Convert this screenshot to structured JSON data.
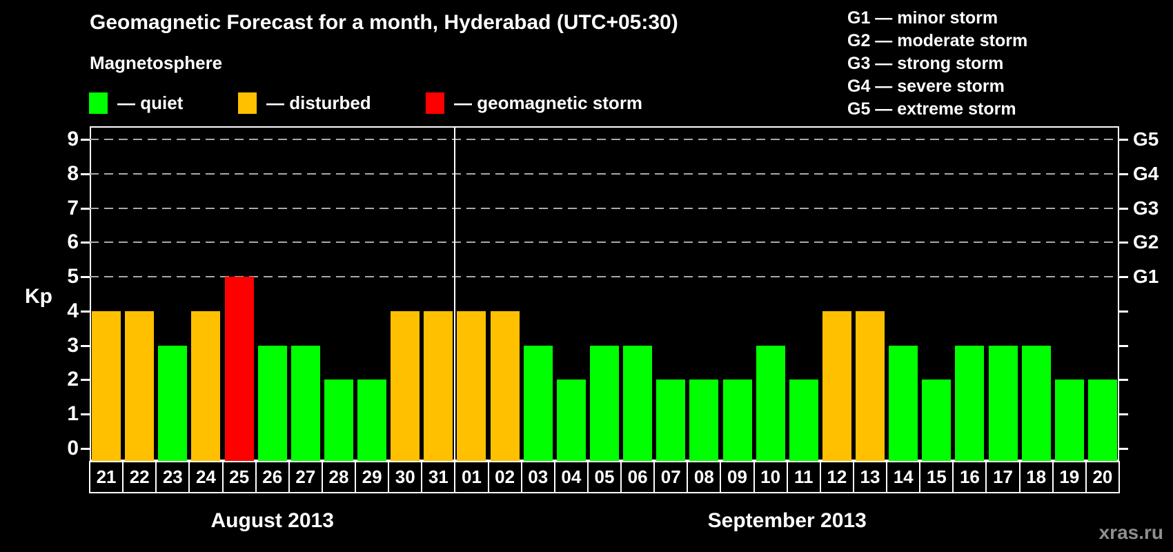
{
  "title": "Geomagnetic Forecast for a month, Hyderabad (UTC+05:30)",
  "subtitle": "Magnetosphere",
  "legend": {
    "items": [
      {
        "key": "quiet",
        "label": "— quiet",
        "color": "#00ff00"
      },
      {
        "key": "disturbed",
        "label": "— disturbed",
        "color": "#ffc000"
      },
      {
        "key": "storm",
        "label": "— geomagnetic storm",
        "color": "#ff0000"
      }
    ]
  },
  "storm_scale": {
    "lines": [
      "G1 — minor storm",
      "G2 — moderate storm",
      "G3 — strong storm",
      "G4 — severe storm",
      "G5 — extreme storm"
    ]
  },
  "watermark": "xras.ru",
  "chart_data": {
    "type": "bar",
    "title": "Geomagnetic Forecast for a month, Hyderabad (UTC+05:30)",
    "xlabel": "",
    "ylabel": "Kp",
    "ylim": [
      0,
      9
    ],
    "yticks": [
      0,
      1,
      2,
      3,
      4,
      5,
      6,
      7,
      8,
      9
    ],
    "grid": "dashed horizontal lines at Kp 5-9 only",
    "legend_position": "top-left",
    "right_axis": [
      {
        "kp": 5,
        "label": "G1"
      },
      {
        "kp": 6,
        "label": "G2"
      },
      {
        "kp": 7,
        "label": "G3"
      },
      {
        "kp": 8,
        "label": "G4"
      },
      {
        "kp": 9,
        "label": "G5"
      }
    ],
    "months": [
      {
        "label": "August 2013",
        "days": 11
      },
      {
        "label": "September 2013",
        "days": 20
      }
    ],
    "categories": [
      "21",
      "22",
      "23",
      "24",
      "25",
      "26",
      "27",
      "28",
      "29",
      "30",
      "31",
      "01",
      "02",
      "03",
      "04",
      "05",
      "06",
      "07",
      "08",
      "09",
      "10",
      "11",
      "12",
      "13",
      "14",
      "15",
      "16",
      "17",
      "18",
      "19",
      "20"
    ],
    "values": [
      4,
      4,
      3,
      4,
      5,
      3,
      3,
      2,
      2,
      4,
      4,
      4,
      4,
      3,
      2,
      3,
      3,
      2,
      2,
      2,
      3,
      2,
      4,
      4,
      3,
      2,
      3,
      3,
      3,
      2,
      2
    ],
    "statuses": [
      "disturbed",
      "disturbed",
      "quiet",
      "disturbed",
      "storm",
      "quiet",
      "quiet",
      "quiet",
      "quiet",
      "disturbed",
      "disturbed",
      "disturbed",
      "disturbed",
      "quiet",
      "quiet",
      "quiet",
      "quiet",
      "quiet",
      "quiet",
      "quiet",
      "quiet",
      "quiet",
      "disturbed",
      "disturbed",
      "quiet",
      "quiet",
      "quiet",
      "quiet",
      "quiet",
      "quiet",
      "quiet"
    ],
    "status_colors": {
      "quiet": "#00ff00",
      "disturbed": "#ffc000",
      "storm": "#ff0000"
    }
  }
}
